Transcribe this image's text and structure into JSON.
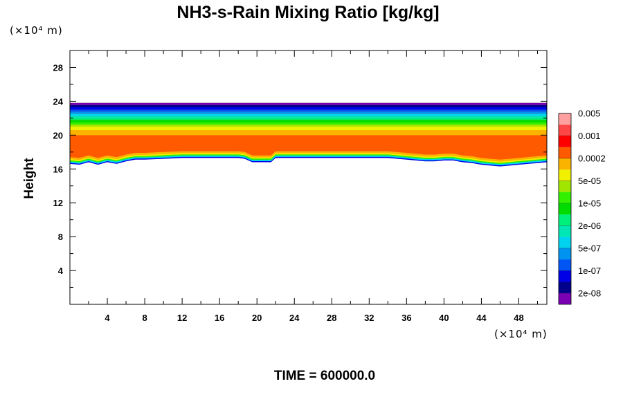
{
  "chart_data": {
    "type": "filled-contour",
    "title": "NH3-s-Rain Mixing Ratio [kg/kg]",
    "ylabel": "Height",
    "xlabel": "",
    "x_unit": "(×10⁴ m)",
    "y_unit": "(×10⁴ m)",
    "xlim": [
      0,
      51
    ],
    "ylim": [
      0,
      30
    ],
    "x_ticks": [
      4,
      8,
      12,
      16,
      20,
      24,
      28,
      32,
      36,
      40,
      44,
      48
    ],
    "y_ticks": [
      4,
      8,
      12,
      16,
      20,
      24,
      28
    ],
    "x_minor_ticks": [
      2,
      6,
      10,
      14,
      18,
      22,
      26,
      30,
      34,
      38,
      42,
      46,
      50
    ],
    "y_minor_ticks": [
      2,
      6,
      10,
      14,
      18,
      22,
      26
    ],
    "footer": "TIME = 600000.0",
    "colorbar": {
      "colors": [
        "#7b00b4",
        "#00008c",
        "#0000e6",
        "#0055f5",
        "#0094f0",
        "#00d2f0",
        "#00e6b4",
        "#00f07c",
        "#00dc00",
        "#32f000",
        "#a0e600",
        "#f0f000",
        "#fab400",
        "#ff5a00",
        "#ff0000",
        "#ff4646",
        "#ffa0a0"
      ],
      "labels": [
        "2e-08",
        "1e-07",
        "5e-07",
        "2e-06",
        "1e-05",
        "5e-05",
        "0.0002",
        "0.001",
        "0.005"
      ]
    },
    "field": {
      "top_height": 23.8,
      "layers": [
        {
          "level": 0,
          "top": 23.8,
          "bottom": 23.55
        },
        {
          "level": 1,
          "top": 23.55,
          "bottom": 23.3
        },
        {
          "level": 2,
          "top": 23.3,
          "bottom": 23.0
        },
        {
          "level": 3,
          "top": 23.0,
          "bottom": 22.75
        },
        {
          "level": 4,
          "top": 22.75,
          "bottom": 22.5
        },
        {
          "level": 5,
          "top": 22.5,
          "bottom": 22.25
        },
        {
          "level": 6,
          "top": 22.25,
          "bottom": 22.0
        },
        {
          "level": 7,
          "top": 22.0,
          "bottom": 21.8
        },
        {
          "level": 8,
          "top": 21.8,
          "bottom": 21.5
        },
        {
          "level": 9,
          "top": 21.5,
          "bottom": 21.25
        },
        {
          "level": 10,
          "top": 21.25,
          "bottom": 21.0
        },
        {
          "level": 11,
          "top": 21.0,
          "bottom": 20.6
        },
        {
          "level": 12,
          "top": 20.6,
          "bottom": 20.0
        },
        {
          "level": 13,
          "top": 20.0,
          "bottom": 18.0
        }
      ],
      "bottom_profile": {
        "x": [
          0,
          1,
          2,
          3,
          4,
          5,
          6,
          7,
          8,
          10,
          12,
          14,
          16,
          18,
          18.7,
          19.5,
          20.5,
          21.5,
          22,
          23,
          26,
          30,
          34,
          36,
          37,
          38,
          39,
          40,
          41,
          42,
          43,
          44,
          45,
          46,
          47,
          48,
          49,
          50,
          51
        ],
        "y": [
          16.6,
          16.5,
          16.8,
          16.5,
          16.8,
          16.6,
          16.9,
          17.1,
          17.1,
          17.2,
          17.3,
          17.3,
          17.3,
          17.3,
          17.2,
          16.8,
          16.8,
          16.8,
          17.3,
          17.3,
          17.3,
          17.3,
          17.3,
          17.1,
          17.0,
          16.9,
          16.9,
          17.0,
          17.0,
          16.8,
          16.7,
          16.5,
          16.4,
          16.3,
          16.4,
          16.5,
          16.6,
          16.7,
          16.8
        ]
      }
    }
  }
}
